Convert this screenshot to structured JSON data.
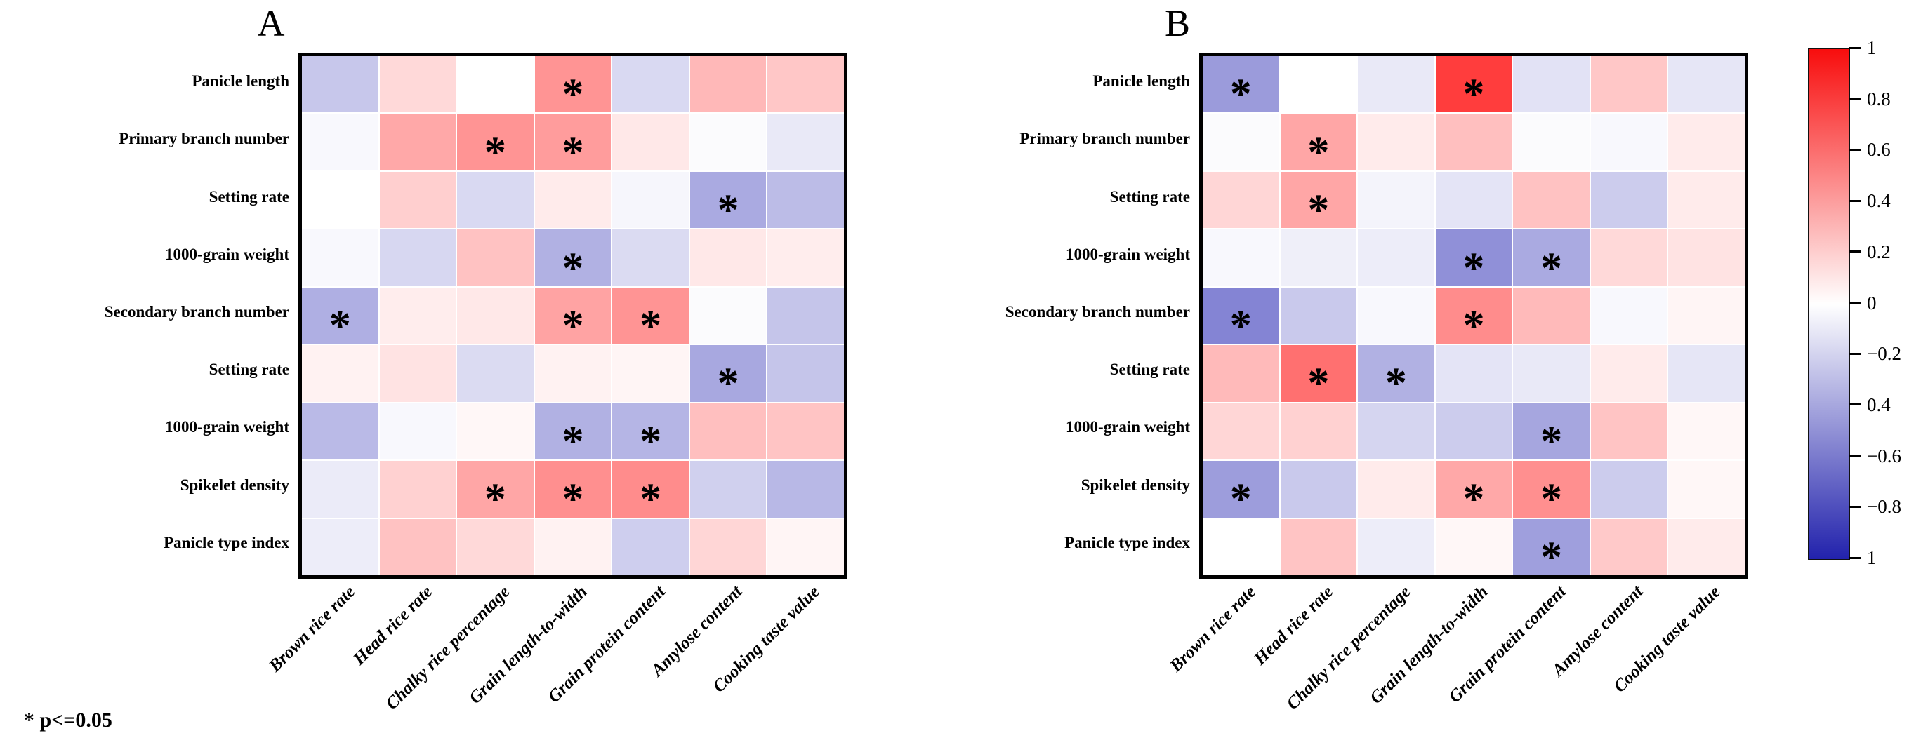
{
  "note": "* p<=0.05",
  "sig_marker": "*",
  "row_labels": [
    "Panicle length",
    "Primary branch number",
    "Setting rate",
    "1000-grain weight",
    "Secondary branch number",
    "Setting rate",
    "1000-grain weight",
    "Spikelet density",
    "Panicle type index"
  ],
  "col_labels": [
    "Brown rice rate",
    "Head rice rate",
    "Chalky rice percentage",
    "Grain length-to-width",
    "Grain protein content",
    "Amylose content",
    "Cooking taste value"
  ],
  "colorbar": {
    "labels": [
      "1",
      "0.8",
      "0.6",
      "0.4",
      "0.2",
      "0",
      "−0.2",
      "0.4",
      "−0.6",
      "−0.8",
      "1"
    ],
    "top_color": "#f80d0d",
    "mid_color": "#ffffff",
    "bottom_color": "#2222ac"
  },
  "chart_data": [
    {
      "type": "heatmap",
      "title": "A",
      "rows": [
        "Panicle length",
        "Primary branch number",
        "Setting rate",
        "1000-grain weight",
        "Secondary branch number",
        "Setting rate",
        "1000-grain weight",
        "Spikelet density",
        "Panicle type index"
      ],
      "cols": [
        "Brown rice rate",
        "Head rice rate",
        "Chalky rice percentage",
        "Grain length-to-width",
        "Grain protein content",
        "Amylose content",
        "Cooking taste value"
      ],
      "scale": {
        "min": -1,
        "max": 1,
        "positive_color": "#ff0000",
        "zero_color": "#ffffff",
        "negative_color": "#2020b0"
      },
      "values": [
        [
          -0.25,
          0.15,
          0.0,
          0.42,
          -0.17,
          0.28,
          0.22
        ],
        [
          -0.03,
          0.34,
          0.42,
          0.39,
          0.09,
          -0.02,
          -0.1
        ],
        [
          0.0,
          0.19,
          -0.17,
          0.08,
          -0.04,
          -0.38,
          -0.3
        ],
        [
          -0.03,
          -0.18,
          0.24,
          -0.35,
          -0.16,
          0.09,
          0.07
        ],
        [
          -0.36,
          0.07,
          0.09,
          0.36,
          0.42,
          -0.02,
          -0.26
        ],
        [
          0.05,
          0.11,
          -0.16,
          0.05,
          0.04,
          -0.39,
          -0.26
        ],
        [
          -0.31,
          -0.03,
          0.03,
          -0.35,
          -0.33,
          0.25,
          0.23
        ],
        [
          -0.09,
          0.18,
          0.35,
          0.44,
          0.45,
          -0.21,
          -0.32
        ],
        [
          -0.08,
          0.24,
          0.15,
          0.05,
          -0.22,
          0.16,
          0.04
        ]
      ],
      "significant": [
        [
          0,
          0,
          0,
          1,
          0,
          0,
          0
        ],
        [
          0,
          0,
          1,
          1,
          0,
          0,
          0
        ],
        [
          0,
          0,
          0,
          0,
          0,
          1,
          0
        ],
        [
          0,
          0,
          0,
          1,
          0,
          0,
          0
        ],
        [
          1,
          0,
          0,
          1,
          1,
          0,
          0
        ],
        [
          0,
          0,
          0,
          0,
          0,
          1,
          0
        ],
        [
          0,
          0,
          0,
          1,
          1,
          0,
          0
        ],
        [
          0,
          0,
          1,
          1,
          1,
          0,
          0
        ],
        [
          0,
          0,
          0,
          0,
          0,
          0,
          0
        ]
      ]
    },
    {
      "type": "heatmap",
      "title": "B",
      "rows": [
        "Panicle length",
        "Primary branch number",
        "Setting rate",
        "1000-grain weight",
        "Secondary branch number",
        "Setting rate",
        "1000-grain weight",
        "Spikelet density",
        "Panicle type index"
      ],
      "cols": [
        "Brown rice rate",
        "Head rice rate",
        "Chalky rice percentage",
        "Grain length-to-width",
        "Grain protein content",
        "Amylose content",
        "Cooking taste value"
      ],
      "scale": {
        "min": -1,
        "max": 1,
        "positive_color": "#ff0000",
        "zero_color": "#ffffff",
        "negative_color": "#2020b0"
      },
      "values": [
        [
          -0.45,
          0.0,
          -0.1,
          0.76,
          -0.13,
          0.22,
          -0.11
        ],
        [
          -0.02,
          0.35,
          0.08,
          0.25,
          -0.02,
          -0.03,
          0.08
        ],
        [
          0.16,
          0.35,
          -0.05,
          -0.12,
          0.24,
          -0.23,
          0.08
        ],
        [
          -0.03,
          -0.07,
          -0.08,
          -0.5,
          -0.38,
          0.15,
          0.11
        ],
        [
          -0.55,
          -0.24,
          -0.03,
          0.45,
          0.27,
          -0.03,
          0.04
        ],
        [
          0.27,
          0.56,
          -0.35,
          -0.12,
          -0.1,
          0.08,
          -0.11
        ],
        [
          0.16,
          0.18,
          -0.19,
          -0.23,
          -0.4,
          0.23,
          0.03
        ],
        [
          -0.44,
          -0.24,
          0.08,
          0.34,
          0.44,
          -0.23,
          0.03
        ],
        [
          0.0,
          0.23,
          -0.08,
          0.03,
          -0.43,
          0.21,
          0.08
        ]
      ],
      "significant": [
        [
          1,
          0,
          0,
          1,
          0,
          0,
          0
        ],
        [
          0,
          1,
          0,
          0,
          0,
          0,
          0
        ],
        [
          0,
          1,
          0,
          0,
          0,
          0,
          0
        ],
        [
          0,
          0,
          0,
          1,
          1,
          0,
          0
        ],
        [
          1,
          0,
          0,
          1,
          0,
          0,
          0
        ],
        [
          0,
          1,
          1,
          0,
          0,
          0,
          0
        ],
        [
          0,
          0,
          0,
          0,
          1,
          0,
          0
        ],
        [
          1,
          0,
          0,
          1,
          1,
          0,
          0
        ],
        [
          0,
          0,
          0,
          0,
          1,
          0,
          0
        ]
      ]
    }
  ]
}
